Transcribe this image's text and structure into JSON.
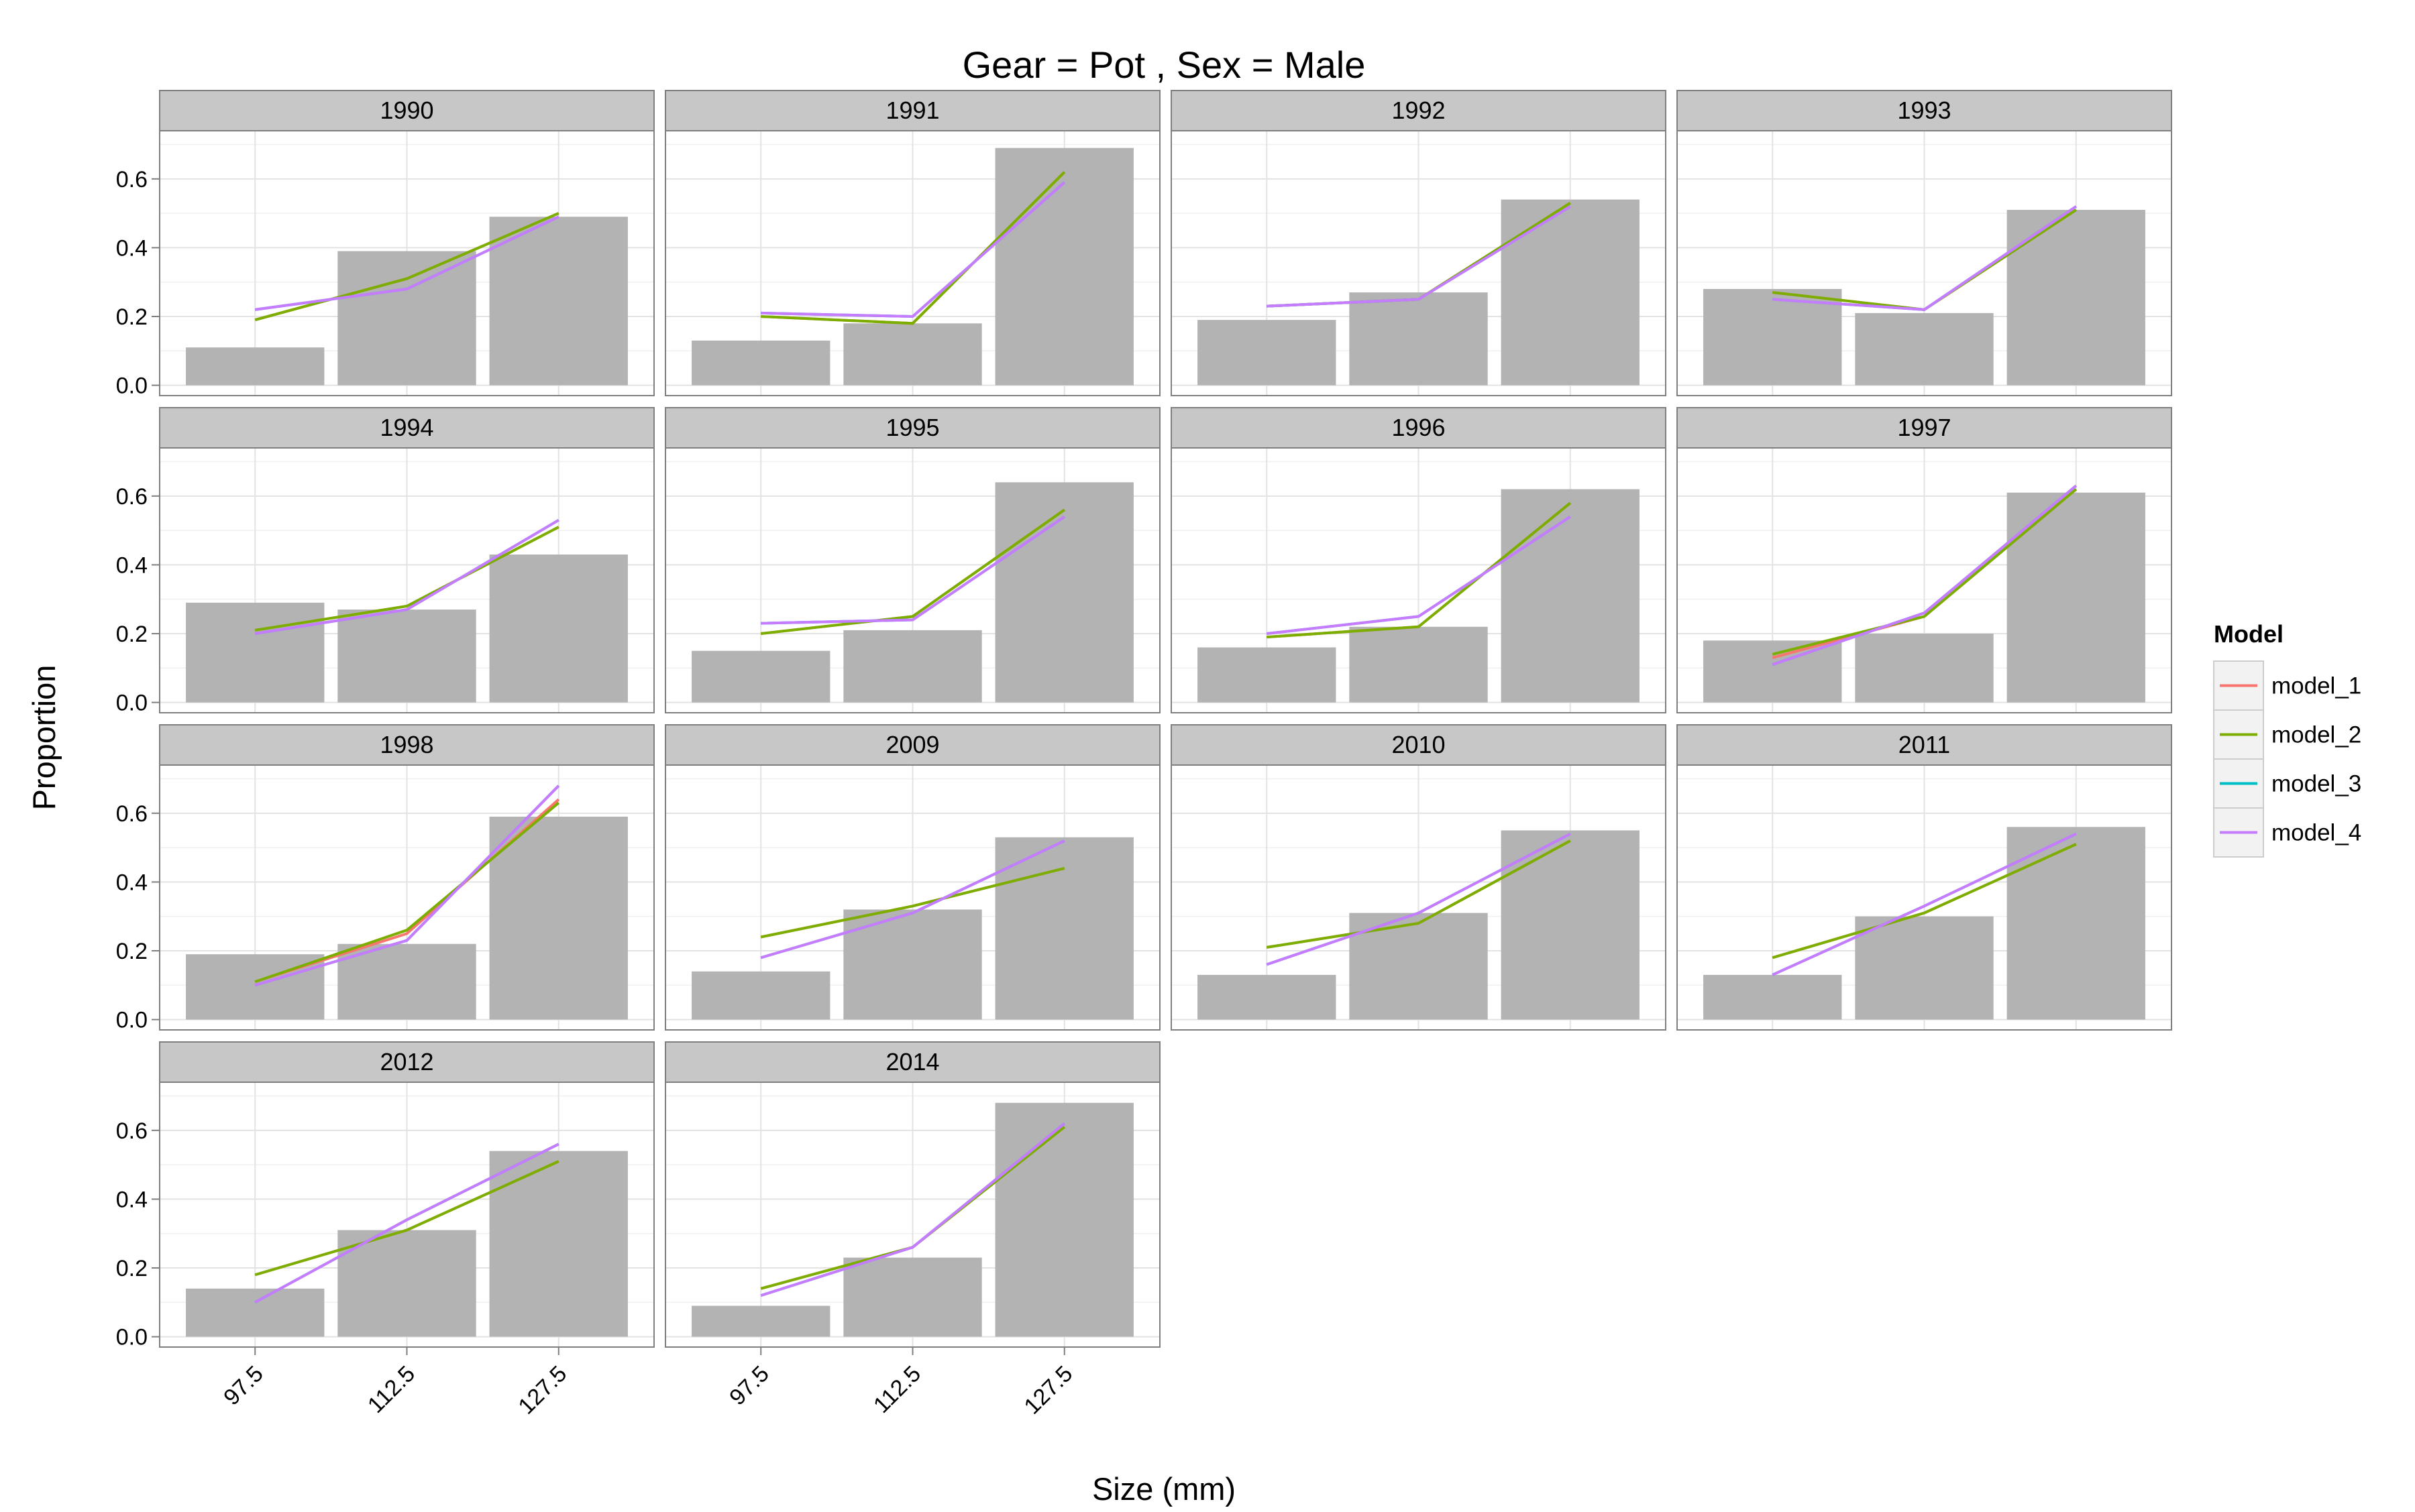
{
  "chart_data": {
    "type": "bar",
    "title": "Gear = Pot , Sex = Male",
    "xlabel": "Size (mm)",
    "ylabel": "Proportion",
    "categories": [
      "97.5",
      "112.5",
      "127.5"
    ],
    "ylim": [
      -0.03,
      0.74
    ],
    "yticks": [
      "0.0",
      "0.2",
      "0.4",
      "0.6"
    ],
    "grid": true,
    "legend": {
      "title": "Model",
      "placement": "right",
      "entries": [
        {
          "name": "model_1",
          "color": "#F8766D"
        },
        {
          "name": "model_2",
          "color": "#7CAE00"
        },
        {
          "name": "model_3",
          "color": "#00BFC4"
        },
        {
          "name": "model_4",
          "color": "#C77CFF"
        }
      ]
    },
    "panels": [
      {
        "label": "1990",
        "bars": [
          0.11,
          0.39,
          0.49
        ],
        "lines": {
          "model_1": [
            0.19,
            0.31,
            0.5
          ],
          "model_2": [
            0.19,
            0.31,
            0.5
          ],
          "model_3": [
            0.22,
            0.28,
            0.49
          ],
          "model_4": [
            0.22,
            0.28,
            0.49
          ]
        }
      },
      {
        "label": "1991",
        "bars": [
          0.13,
          0.18,
          0.69
        ],
        "lines": {
          "model_1": [
            0.2,
            0.18,
            0.62
          ],
          "model_2": [
            0.2,
            0.18,
            0.62
          ],
          "model_3": [
            0.21,
            0.2,
            0.59
          ],
          "model_4": [
            0.21,
            0.2,
            0.59
          ]
        }
      },
      {
        "label": "1992",
        "bars": [
          0.19,
          0.27,
          0.54
        ],
        "lines": {
          "model_1": [
            0.23,
            0.25,
            0.53
          ],
          "model_2": [
            0.23,
            0.25,
            0.53
          ],
          "model_3": [
            0.23,
            0.25,
            0.52
          ],
          "model_4": [
            0.23,
            0.25,
            0.52
          ]
        }
      },
      {
        "label": "1993",
        "bars": [
          0.28,
          0.21,
          0.51
        ],
        "lines": {
          "model_1": [
            0.27,
            0.22,
            0.51
          ],
          "model_2": [
            0.27,
            0.22,
            0.51
          ],
          "model_3": [
            0.25,
            0.22,
            0.52
          ],
          "model_4": [
            0.25,
            0.22,
            0.52
          ]
        }
      },
      {
        "label": "1994",
        "bars": [
          0.29,
          0.27,
          0.43
        ],
        "lines": {
          "model_1": [
            0.21,
            0.28,
            0.51
          ],
          "model_2": [
            0.21,
            0.28,
            0.51
          ],
          "model_3": [
            0.2,
            0.27,
            0.53
          ],
          "model_4": [
            0.2,
            0.27,
            0.53
          ]
        }
      },
      {
        "label": "1995",
        "bars": [
          0.15,
          0.21,
          0.64
        ],
        "lines": {
          "model_1": [
            0.2,
            0.25,
            0.56
          ],
          "model_2": [
            0.2,
            0.25,
            0.56
          ],
          "model_3": [
            0.23,
            0.24,
            0.54
          ],
          "model_4": [
            0.23,
            0.24,
            0.54
          ]
        }
      },
      {
        "label": "1996",
        "bars": [
          0.16,
          0.22,
          0.62
        ],
        "lines": {
          "model_1": [
            0.19,
            0.22,
            0.58
          ],
          "model_2": [
            0.19,
            0.22,
            0.58
          ],
          "model_3": [
            0.2,
            0.25,
            0.54
          ],
          "model_4": [
            0.2,
            0.25,
            0.54
          ]
        }
      },
      {
        "label": "1997",
        "bars": [
          0.18,
          0.2,
          0.61
        ],
        "lines": {
          "model_1": [
            0.13,
            0.25,
            0.62
          ],
          "model_2": [
            0.14,
            0.25,
            0.62
          ],
          "model_3": [
            0.11,
            0.26,
            0.63
          ],
          "model_4": [
            0.11,
            0.26,
            0.63
          ]
        }
      },
      {
        "label": "1998",
        "bars": [
          0.19,
          0.22,
          0.59
        ],
        "lines": {
          "model_1": [
            0.11,
            0.25,
            0.64
          ],
          "model_2": [
            0.11,
            0.26,
            0.63
          ],
          "model_3": [
            0.1,
            0.23,
            0.68
          ],
          "model_4": [
            0.1,
            0.23,
            0.68
          ]
        }
      },
      {
        "label": "2009",
        "bars": [
          0.14,
          0.32,
          0.53
        ],
        "lines": {
          "model_1": [
            0.24,
            0.33,
            0.44
          ],
          "model_2": [
            0.24,
            0.33,
            0.44
          ],
          "model_3": [
            0.18,
            0.31,
            0.52
          ],
          "model_4": [
            0.18,
            0.31,
            0.52
          ]
        }
      },
      {
        "label": "2010",
        "bars": [
          0.13,
          0.31,
          0.55
        ],
        "lines": {
          "model_1": [
            0.21,
            0.28,
            0.52
          ],
          "model_2": [
            0.21,
            0.28,
            0.52
          ],
          "model_3": [
            0.16,
            0.31,
            0.54
          ],
          "model_4": [
            0.16,
            0.31,
            0.54
          ]
        }
      },
      {
        "label": "2011",
        "bars": [
          0.13,
          0.3,
          0.56
        ],
        "lines": {
          "model_1": [
            0.18,
            0.31,
            0.51
          ],
          "model_2": [
            0.18,
            0.31,
            0.51
          ],
          "model_3": [
            0.13,
            0.33,
            0.54
          ],
          "model_4": [
            0.13,
            0.33,
            0.54
          ]
        }
      },
      {
        "label": "2012",
        "bars": [
          0.14,
          0.31,
          0.54
        ],
        "lines": {
          "model_1": [
            0.18,
            0.31,
            0.51
          ],
          "model_2": [
            0.18,
            0.31,
            0.51
          ],
          "model_3": [
            0.1,
            0.34,
            0.56
          ],
          "model_4": [
            0.1,
            0.34,
            0.56
          ]
        }
      },
      {
        "label": "2014",
        "bars": [
          0.09,
          0.23,
          0.68
        ],
        "lines": {
          "model_1": [
            0.14,
            0.26,
            0.61
          ],
          "model_2": [
            0.14,
            0.26,
            0.61
          ],
          "model_3": [
            0.12,
            0.26,
            0.62
          ],
          "model_4": [
            0.12,
            0.26,
            0.62
          ]
        }
      }
    ]
  }
}
